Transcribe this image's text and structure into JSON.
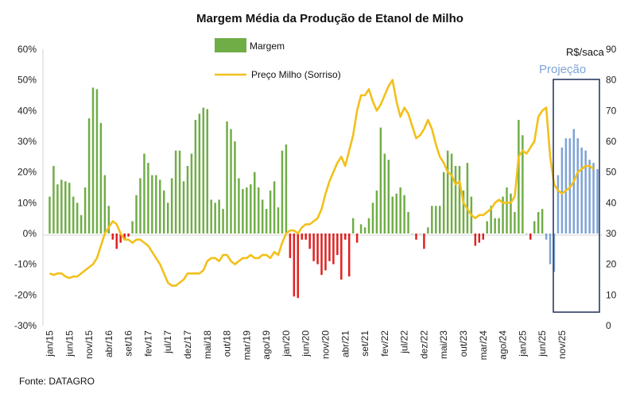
{
  "chart_data": {
    "type": "bar+line",
    "title": "Margem Média da Produção de Etanol de Milho",
    "y_left": {
      "ticks": [
        "60%",
        "50%",
        "40%",
        "30%",
        "20%",
        "10%",
        "0%",
        "-10%",
        "-20%",
        "-30%"
      ],
      "range": [
        -30,
        60
      ]
    },
    "y_right": {
      "label": "R$/saca",
      "ticks": [
        "90",
        "80",
        "70",
        "60",
        "50",
        "40",
        "30",
        "20",
        "10",
        "0"
      ],
      "range": [
        0,
        90
      ]
    },
    "x_tick_labels": [
      "jan/15",
      "jun/15",
      "nov/15",
      "abr/16",
      "set/16",
      "fev/17",
      "jul/17",
      "dez/17",
      "mai/18",
      "out/18",
      "mar/19",
      "ago/19",
      "jan/20",
      "jun/20",
      "nov/20",
      "abr/21",
      "set/21",
      "fev/22",
      "jul/22",
      "dez/22",
      "mai/23",
      "out/23",
      "mar/24",
      "ago/24",
      "jan/25",
      "jun/25",
      "nov/25"
    ],
    "x_tick_indices": [
      0,
      5,
      10,
      15,
      20,
      25,
      30,
      35,
      40,
      45,
      50,
      55,
      60,
      65,
      70,
      75,
      80,
      85,
      90,
      95,
      100,
      105,
      110,
      115,
      120,
      125,
      130
    ],
    "series": [
      {
        "name": "Margem",
        "type": "bar",
        "unit": "%",
        "positive_color": "#70ad47",
        "negative_color": "#e02020",
        "values": [
          12,
          22,
          16,
          17.5,
          17,
          16.5,
          12,
          10,
          6,
          15,
          37.5,
          47.5,
          47,
          36,
          19,
          9,
          -2,
          -5,
          -3,
          -2,
          -1,
          4,
          12.5,
          18,
          26,
          23,
          19,
          19,
          17.5,
          14,
          10,
          18,
          27,
          27,
          17,
          22,
          26,
          37,
          39,
          41,
          40.5,
          11,
          10,
          11,
          8,
          36.5,
          34,
          30,
          18,
          14.5,
          15,
          16,
          20,
          15,
          11,
          8,
          14,
          17,
          8.5,
          27,
          29,
          -8,
          -20.5,
          -21,
          -2,
          -2,
          -5,
          -9,
          -10,
          -13.5,
          -12,
          -9,
          -10,
          -7,
          -15,
          -2,
          -14,
          5,
          -3,
          3,
          2,
          5,
          10,
          14,
          34.5,
          26,
          24,
          12,
          13,
          15,
          12.5,
          7,
          0,
          -2,
          0,
          -5,
          2,
          9,
          9,
          9,
          20,
          27,
          26,
          22,
          22,
          14,
          23,
          12,
          -4,
          -3,
          -2,
          4,
          9,
          5,
          5,
          12,
          15,
          13,
          7,
          37,
          32,
          0,
          -2,
          4,
          7,
          8,
          -2,
          -10,
          -12.5,
          19,
          28,
          31,
          31,
          34,
          31,
          28,
          27,
          24,
          23,
          21
        ],
        "projection_start_index": 126
      },
      {
        "name": "Preço Milho (Sorriso)",
        "type": "line",
        "unit": "R$/saca",
        "color": "#f2c01a",
        "values": [
          17,
          16.5,
          17,
          17,
          16,
          15.5,
          16,
          16,
          17,
          18,
          19,
          20,
          22,
          26,
          30,
          32,
          34,
          33,
          30,
          28,
          28,
          27,
          28,
          28,
          27,
          26,
          24,
          22,
          20,
          17,
          14,
          13,
          13,
          14,
          15,
          17,
          17,
          17,
          17,
          18,
          21,
          22,
          22,
          21,
          23,
          23,
          21,
          20,
          21,
          22,
          22,
          23,
          22,
          22,
          23,
          23,
          22,
          24,
          23,
          27,
          30,
          31,
          31,
          30,
          32,
          33,
          33,
          34,
          35,
          38,
          43,
          47,
          50,
          53,
          55,
          52,
          57,
          62,
          70,
          75,
          75,
          77,
          73,
          70,
          72,
          75,
          78,
          80,
          73,
          68,
          71,
          69,
          65,
          61,
          62,
          64,
          67,
          64,
          59,
          55,
          53,
          50,
          49,
          46,
          47,
          40,
          38,
          36,
          35,
          36,
          36,
          37,
          38,
          40,
          41,
          40,
          40,
          40,
          42,
          55,
          57,
          56,
          58,
          60,
          68,
          70,
          71,
          55,
          46,
          44,
          43,
          44,
          45,
          47,
          50,
          51,
          52,
          52,
          51
        ]
      }
    ],
    "projection_label": "Projeção",
    "source": "Fonte: DATAGRO"
  }
}
